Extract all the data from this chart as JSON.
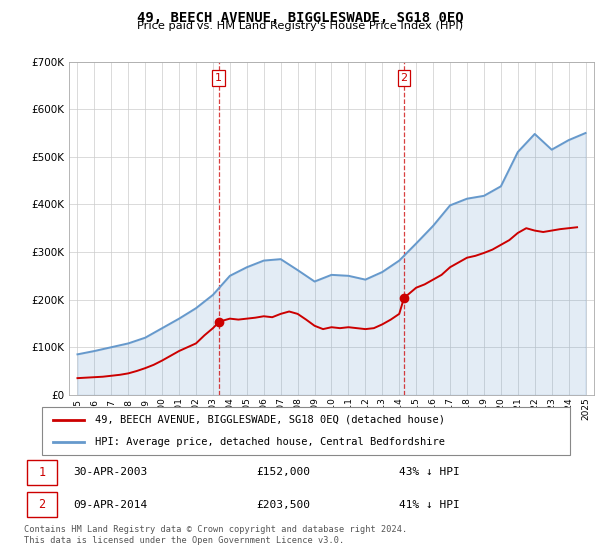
{
  "title": "49, BEECH AVENUE, BIGGLESWADE, SG18 0EQ",
  "subtitle": "Price paid vs. HM Land Registry's House Price Index (HPI)",
  "ylim": [
    0,
    700000
  ],
  "yticks": [
    0,
    100000,
    200000,
    300000,
    400000,
    500000,
    600000,
    700000
  ],
  "ytick_labels": [
    "£0",
    "£100K",
    "£200K",
    "£300K",
    "£400K",
    "£500K",
    "£600K",
    "£700K"
  ],
  "sale1_date": 2003.33,
  "sale1_price": 152000,
  "sale1_label": "1",
  "sale2_date": 2014.28,
  "sale2_price": 203500,
  "sale2_label": "2",
  "red_color": "#cc0000",
  "blue_color": "#6699cc",
  "vline_color": "#cc0000",
  "grid_color": "#cccccc",
  "legend_label_red": "49, BEECH AVENUE, BIGGLESWADE, SG18 0EQ (detached house)",
  "legend_label_blue": "HPI: Average price, detached house, Central Bedfordshire",
  "footer": "Contains HM Land Registry data © Crown copyright and database right 2024.\nThis data is licensed under the Open Government Licence v3.0.",
  "hpi_years": [
    1995,
    1996,
    1997,
    1998,
    1999,
    2000,
    2001,
    2002,
    2003,
    2004,
    2005,
    2006,
    2007,
    2008,
    2009,
    2010,
    2011,
    2012,
    2013,
    2014,
    2015,
    2016,
    2017,
    2018,
    2019,
    2020,
    2021,
    2022,
    2023,
    2024,
    2025
  ],
  "hpi_values": [
    85000,
    92000,
    100000,
    108000,
    120000,
    140000,
    160000,
    182000,
    210000,
    250000,
    268000,
    282000,
    285000,
    262000,
    238000,
    252000,
    250000,
    242000,
    258000,
    282000,
    318000,
    355000,
    398000,
    412000,
    418000,
    438000,
    510000,
    548000,
    515000,
    535000,
    550000
  ],
  "red_years": [
    1995.0,
    1995.5,
    1996.0,
    1996.5,
    1997.0,
    1997.5,
    1998.0,
    1998.5,
    1999.0,
    1999.5,
    2000.0,
    2000.5,
    2001.0,
    2001.5,
    2002.0,
    2002.5,
    2003.0,
    2003.33,
    2003.5,
    2004.0,
    2004.5,
    2005.0,
    2005.5,
    2006.0,
    2006.5,
    2007.0,
    2007.5,
    2008.0,
    2008.5,
    2009.0,
    2009.5,
    2010.0,
    2010.5,
    2011.0,
    2011.5,
    2012.0,
    2012.5,
    2013.0,
    2013.5,
    2014.0,
    2014.28,
    2014.5,
    2015.0,
    2015.5,
    2016.0,
    2016.5,
    2017.0,
    2017.5,
    2018.0,
    2018.5,
    2019.0,
    2019.5,
    2020.0,
    2020.5,
    2021.0,
    2021.5,
    2022.0,
    2022.5,
    2023.0,
    2023.5,
    2024.0,
    2024.5
  ],
  "red_values": [
    35000,
    36000,
    37000,
    38000,
    40000,
    42000,
    45000,
    50000,
    56000,
    63000,
    72000,
    82000,
    92000,
    100000,
    108000,
    125000,
    140000,
    152000,
    155000,
    160000,
    158000,
    160000,
    162000,
    165000,
    163000,
    170000,
    175000,
    170000,
    158000,
    145000,
    138000,
    142000,
    140000,
    142000,
    140000,
    138000,
    140000,
    148000,
    158000,
    170000,
    203500,
    210000,
    225000,
    232000,
    242000,
    252000,
    268000,
    278000,
    288000,
    292000,
    298000,
    305000,
    315000,
    325000,
    340000,
    350000,
    345000,
    342000,
    345000,
    348000,
    350000,
    352000
  ]
}
